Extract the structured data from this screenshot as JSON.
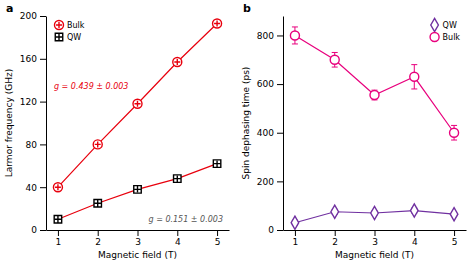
{
  "chart_data": [
    {
      "type": "line",
      "title": "a",
      "x": [
        1,
        2,
        3,
        4,
        5
      ],
      "color": "#e8000d",
      "series": [
        {
          "name": "Bulk",
          "color": "#e8000d",
          "marker": "circle-cross",
          "values": [
            40,
            80,
            118,
            157,
            193
          ]
        },
        {
          "name": "QW",
          "color": "#000000",
          "marker": "square-cross",
          "values": [
            10,
            25,
            38,
            48,
            62
          ]
        }
      ],
      "annotations": [
        {
          "text": "g = 0.439 ± 0.003",
          "color": "#e8000d"
        },
        {
          "text": "g = 0.151 ± 0.003",
          "color": "#555555"
        }
      ],
      "x_label": "Magnetic field (T)",
      "y_label": "Larmor frequency (GHz)",
      "xlim": [
        0.7,
        5.3
      ],
      "xticks": [
        1,
        2,
        3,
        4,
        5
      ],
      "ylim": [
        0,
        200
      ],
      "yticks": [
        0,
        40,
        80,
        120,
        160,
        200
      ],
      "legend": "upper left",
      "grid": false
    },
    {
      "type": "line",
      "title": "b",
      "x": [
        1,
        2,
        3,
        4,
        5
      ],
      "series": [
        {
          "name": "QW",
          "color": "#7030a0",
          "marker": "diamond",
          "values": [
            30,
            75,
            70,
            80,
            65
          ],
          "errors": [
            10,
            10,
            8,
            10,
            8
          ]
        },
        {
          "name": "Bulk",
          "color": "#e8007d",
          "marker": "circle",
          "values": [
            800,
            700,
            555,
            630,
            400
          ],
          "errors": [
            35,
            30,
            20,
            50,
            30
          ]
        }
      ],
      "x_label": "Magnetic field (T)",
      "y_label": "Spin dephasing time (ps)",
      "xlim": [
        0.7,
        5.3
      ],
      "xticks": [
        1,
        2,
        3,
        4,
        5
      ],
      "ylim": [
        0,
        880
      ],
      "yticks": [
        0,
        200,
        400,
        600,
        800
      ],
      "legend": "upper right",
      "grid": false
    }
  ]
}
